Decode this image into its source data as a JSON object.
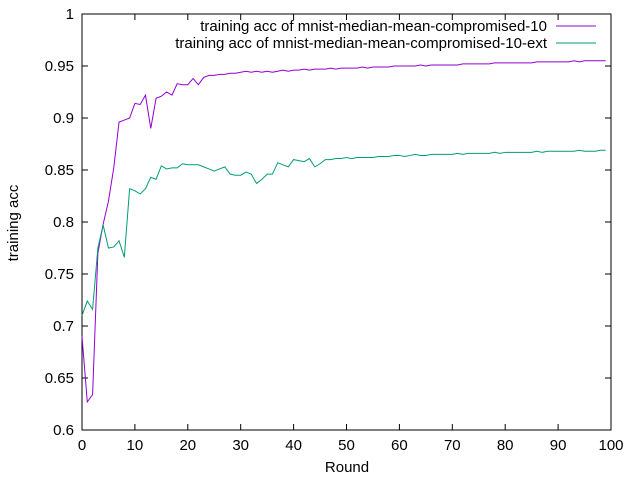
{
  "chart_data": {
    "type": "line",
    "title": "",
    "xlabel": "Round",
    "ylabel": "training acc",
    "xlim": [
      0,
      100
    ],
    "ylim": [
      0.6,
      1.0
    ],
    "x_ticks": [
      0,
      10,
      20,
      30,
      40,
      50,
      60,
      70,
      80,
      90,
      100
    ],
    "y_ticks": [
      0.6,
      0.65,
      0.7,
      0.75,
      0.8,
      0.85,
      0.9,
      0.95,
      1.0
    ],
    "x_tick_labels": [
      "0",
      "10",
      "20",
      "30",
      "40",
      "50",
      "60",
      "70",
      "80",
      "90",
      "100"
    ],
    "y_tick_labels": [
      "0.6",
      "0.65",
      "0.7",
      "0.75",
      "0.8",
      "0.85",
      "0.9",
      "0.95",
      "1"
    ],
    "grid": false,
    "legend_position": "top-right",
    "series": [
      {
        "name": "training acc of mnist-median-mean-compromised-10",
        "color": "#9400d3",
        "x": [
          0,
          1,
          2,
          3,
          4,
          5,
          6,
          7,
          8,
          9,
          10,
          11,
          12,
          13,
          14,
          15,
          16,
          17,
          18,
          19,
          20,
          21,
          22,
          23,
          24,
          25,
          26,
          27,
          28,
          29,
          30,
          31,
          32,
          33,
          34,
          35,
          36,
          37,
          38,
          39,
          40,
          41,
          42,
          43,
          44,
          45,
          46,
          47,
          48,
          49,
          50,
          51,
          52,
          53,
          54,
          55,
          56,
          57,
          58,
          59,
          60,
          61,
          62,
          63,
          64,
          65,
          66,
          67,
          68,
          69,
          70,
          71,
          72,
          73,
          74,
          75,
          76,
          77,
          78,
          79,
          80,
          81,
          82,
          83,
          84,
          85,
          86,
          87,
          88,
          89,
          90,
          91,
          92,
          93,
          94,
          95,
          96,
          97,
          98,
          99
        ],
        "values": [
          0.69,
          0.627,
          0.634,
          0.77,
          0.798,
          0.82,
          0.852,
          0.896,
          0.898,
          0.9,
          0.914,
          0.913,
          0.922,
          0.89,
          0.919,
          0.921,
          0.925,
          0.922,
          0.933,
          0.932,
          0.932,
          0.938,
          0.932,
          0.939,
          0.941,
          0.941,
          0.942,
          0.942,
          0.943,
          0.943,
          0.944,
          0.945,
          0.944,
          0.945,
          0.944,
          0.945,
          0.944,
          0.945,
          0.946,
          0.945,
          0.946,
          0.946,
          0.947,
          0.946,
          0.947,
          0.947,
          0.947,
          0.948,
          0.947,
          0.948,
          0.948,
          0.948,
          0.948,
          0.949,
          0.948,
          0.949,
          0.949,
          0.949,
          0.949,
          0.95,
          0.95,
          0.95,
          0.95,
          0.95,
          0.951,
          0.95,
          0.951,
          0.951,
          0.951,
          0.951,
          0.951,
          0.951,
          0.952,
          0.952,
          0.952,
          0.952,
          0.952,
          0.952,
          0.953,
          0.953,
          0.953,
          0.953,
          0.953,
          0.953,
          0.953,
          0.953,
          0.954,
          0.954,
          0.954,
          0.954,
          0.954,
          0.954,
          0.954,
          0.955,
          0.954,
          0.955,
          0.955,
          0.955,
          0.955,
          0.955
        ]
      },
      {
        "name": "training acc of mnist-median-mean-compromised-10-ext",
        "color": "#009e73",
        "x": [
          0,
          1,
          2,
          3,
          4,
          5,
          6,
          7,
          8,
          9,
          10,
          11,
          12,
          13,
          14,
          15,
          16,
          17,
          18,
          19,
          20,
          21,
          22,
          23,
          24,
          25,
          26,
          27,
          28,
          29,
          30,
          31,
          32,
          33,
          34,
          35,
          36,
          37,
          38,
          39,
          40,
          41,
          42,
          43,
          44,
          45,
          46,
          47,
          48,
          49,
          50,
          51,
          52,
          53,
          54,
          55,
          56,
          57,
          58,
          59,
          60,
          61,
          62,
          63,
          64,
          65,
          66,
          67,
          68,
          69,
          70,
          71,
          72,
          73,
          74,
          75,
          76,
          77,
          78,
          79,
          80,
          81,
          82,
          83,
          84,
          85,
          86,
          87,
          88,
          89,
          90,
          91,
          92,
          93,
          94,
          95,
          96,
          97,
          98,
          99
        ],
        "values": [
          0.71,
          0.724,
          0.716,
          0.775,
          0.797,
          0.775,
          0.776,
          0.782,
          0.766,
          0.832,
          0.83,
          0.827,
          0.832,
          0.843,
          0.841,
          0.854,
          0.851,
          0.852,
          0.852,
          0.856,
          0.855,
          0.855,
          0.855,
          0.853,
          0.851,
          0.849,
          0.851,
          0.853,
          0.846,
          0.845,
          0.845,
          0.848,
          0.846,
          0.837,
          0.841,
          0.846,
          0.846,
          0.857,
          0.855,
          0.853,
          0.86,
          0.859,
          0.858,
          0.861,
          0.853,
          0.856,
          0.86,
          0.86,
          0.861,
          0.861,
          0.862,
          0.861,
          0.862,
          0.862,
          0.862,
          0.862,
          0.863,
          0.863,
          0.863,
          0.864,
          0.864,
          0.863,
          0.864,
          0.865,
          0.864,
          0.864,
          0.865,
          0.865,
          0.865,
          0.865,
          0.865,
          0.866,
          0.865,
          0.866,
          0.866,
          0.866,
          0.866,
          0.866,
          0.867,
          0.866,
          0.867,
          0.867,
          0.867,
          0.867,
          0.867,
          0.867,
          0.868,
          0.867,
          0.868,
          0.868,
          0.868,
          0.868,
          0.868,
          0.868,
          0.869,
          0.868,
          0.868,
          0.868,
          0.869,
          0.869
        ]
      }
    ]
  }
}
